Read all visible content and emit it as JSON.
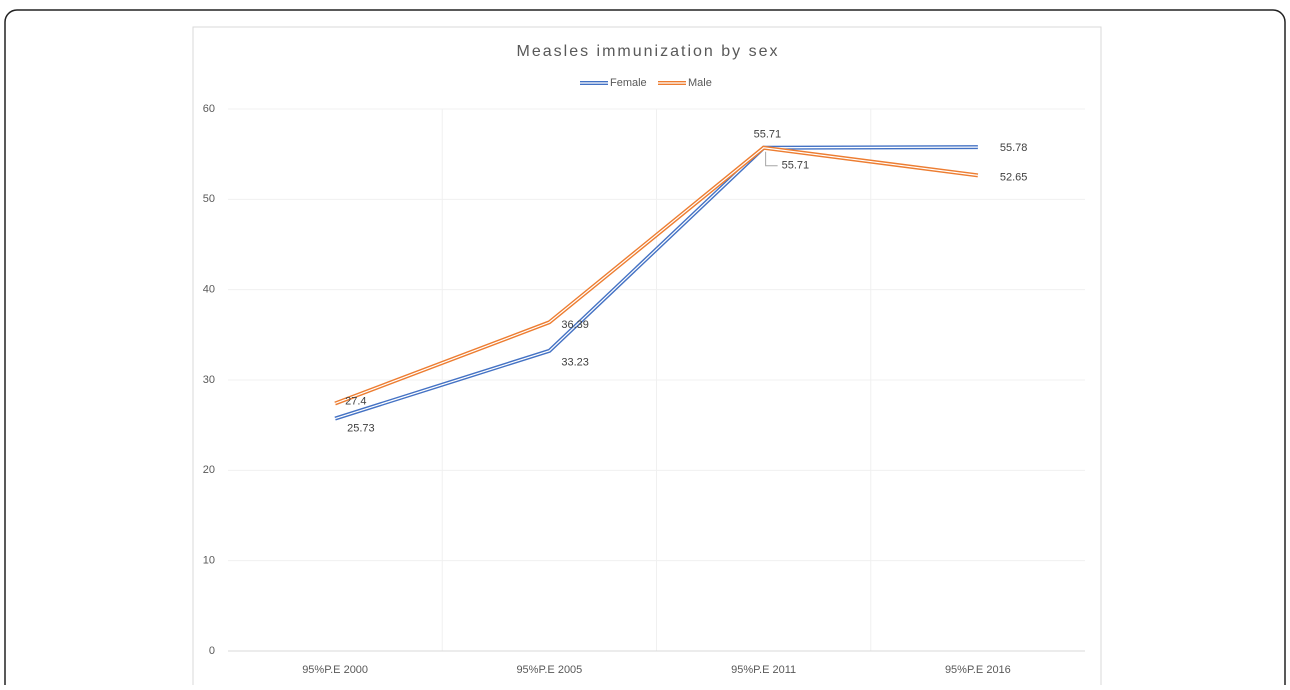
{
  "chart_data": {
    "type": "line",
    "title": "Measles immunization by sex",
    "categories": [
      "95%P.E 2000",
      "95%P.E 2005",
      "95%P.E 2011",
      "95%P.E 2016"
    ],
    "series": [
      {
        "name": "Female",
        "color": "#4472c4",
        "values": [
          25.73,
          33.23,
          55.71,
          55.78
        ]
      },
      {
        "name": "Male",
        "color": "#ed7d31",
        "values": [
          27.4,
          36.39,
          55.71,
          52.65
        ]
      }
    ],
    "ylim": [
      0,
      60
    ],
    "yticks": [
      0,
      10,
      20,
      30,
      40,
      50,
      60
    ],
    "grid": true,
    "legend": "top"
  }
}
